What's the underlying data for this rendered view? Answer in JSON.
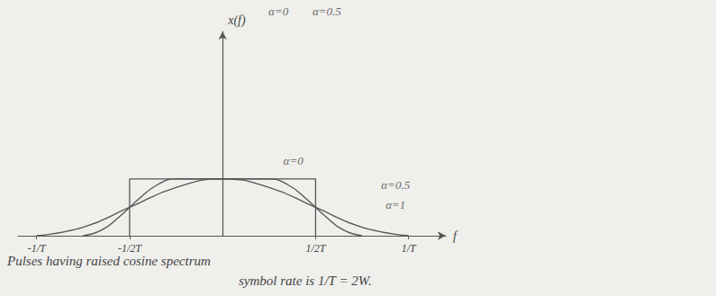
{
  "chart_data": {
    "type": "line",
    "axis_labels": {
      "x": "f",
      "y": "x(f)"
    },
    "caption": [
      "Pulses having raised cosine spectrum",
      "symbol rate is 1/T = 2W."
    ],
    "xlim": [
      -1.1,
      1.2
    ],
    "xticks": [
      {
        "value": -1,
        "label": "-1/T"
      },
      {
        "value": -0.5,
        "label": "-1/2T"
      },
      {
        "value": 0.5,
        "label": "1/2T"
      },
      {
        "value": 1,
        "label": "1/T"
      }
    ],
    "ylim": [
      0,
      3.6
    ],
    "tick_labels": "x",
    "grid": false,
    "color": "#555555",
    "series": [
      {
        "x": [
          -0.5,
          -0.5,
          0.5,
          0.5
        ],
        "values": [
          0,
          1,
          1,
          0
        ],
        "line_style": "solid"
      },
      {
        "x": [
          -0.75,
          -0.65,
          -0.55,
          -0.45,
          -0.35,
          -0.25,
          0,
          0.25,
          0.35,
          0.45,
          0.55,
          0.65,
          0.75
        ],
        "values": [
          0,
          0.1,
          0.35,
          0.65,
          0.9,
          1,
          1,
          1,
          0.9,
          0.65,
          0.35,
          0.1,
          0
        ],
        "line_style": "smooth"
      },
      {
        "x": [
          -1,
          -0.75,
          -0.5,
          -0.25,
          0,
          0.25,
          0.5,
          0.75,
          1
        ],
        "values": [
          0,
          0.15,
          0.5,
          0.85,
          1,
          0.85,
          0.5,
          0.15,
          0
        ],
        "line_style": "smooth"
      }
    ],
    "annotations": [
      {
        "text": "α=0",
        "x": 0.3,
        "y": 3.95
      },
      {
        "text": "α=0.5",
        "x": 0.56,
        "y": 3.95
      },
      {
        "text": "α=0",
        "x": 0.38,
        "y": 1.33
      },
      {
        "text": "α=0.5",
        "x": 0.93,
        "y": 0.9
      },
      {
        "text": "α=1",
        "x": 0.93,
        "y": 0.54
      }
    ]
  }
}
